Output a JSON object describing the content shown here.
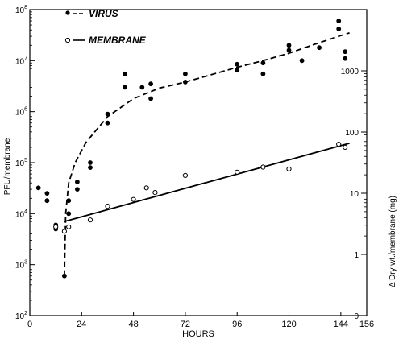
{
  "chart_data": {
    "type": "scatter",
    "xlabel": "HOURS",
    "ylabel_left": "PFU/membrane",
    "ylabel_right": "Δ Dry wt./membrane (mg)",
    "xlim": [
      0,
      156
    ],
    "ylim_left": [
      100,
      100000000
    ],
    "y_scale_left": "log",
    "ylim_right": [
      0,
      10000
    ],
    "y_scale_right": "log",
    "x_ticks": [
      "0",
      "24",
      "48",
      "72",
      "96",
      "120",
      "144",
      "156"
    ],
    "y_left_ticks": [
      {
        "value": 100,
        "base": "10",
        "exp": "2"
      },
      {
        "value": 1000,
        "base": "10",
        "exp": "3"
      },
      {
        "value": 10000,
        "base": "10",
        "exp": "4"
      },
      {
        "value": 100000,
        "base": "10",
        "exp": "5"
      },
      {
        "value": 1000000,
        "base": "10",
        "exp": "6"
      },
      {
        "value": 10000000,
        "base": "10",
        "exp": "7"
      },
      {
        "value": 100000000,
        "base": "10",
        "exp": "8"
      }
    ],
    "y_right_ticks": [
      "0",
      "1",
      "10",
      "100",
      "1000"
    ],
    "legend_position": "top-left",
    "series": [
      {
        "name": "VIRUS",
        "marker": "filled-circle",
        "points": [
          [
            4,
            32000
          ],
          [
            8,
            25000
          ],
          [
            8,
            18000
          ],
          [
            12,
            6000
          ],
          [
            12,
            5000
          ],
          [
            16,
            600
          ],
          [
            18,
            18000
          ],
          [
            18,
            10000
          ],
          [
            22,
            42000
          ],
          [
            22,
            30000
          ],
          [
            28,
            100000
          ],
          [
            28,
            80000
          ],
          [
            36,
            900000
          ],
          [
            36,
            600000
          ],
          [
            44,
            5500000
          ],
          [
            44,
            3000000
          ],
          [
            52,
            3000000
          ],
          [
            56,
            3500000
          ],
          [
            56,
            1800000
          ],
          [
            72,
            5500000
          ],
          [
            72,
            3800000
          ],
          [
            96,
            8500000
          ],
          [
            96,
            6500000
          ],
          [
            108,
            9000000
          ],
          [
            108,
            5500000
          ],
          [
            120,
            20000000
          ],
          [
            120,
            16000000
          ],
          [
            126,
            10000000
          ],
          [
            134,
            18000000
          ],
          [
            143,
            60000000
          ],
          [
            143,
            42000000
          ],
          [
            146,
            15000000
          ],
          [
            146,
            11000000
          ]
        ]
      },
      {
        "name": "MEMBRANE",
        "marker": "open-circle",
        "points": [
          [
            12,
            5500
          ],
          [
            16,
            4500
          ],
          [
            18,
            5500
          ],
          [
            28,
            7500
          ],
          [
            36,
            14000
          ],
          [
            48,
            19000
          ],
          [
            54,
            32000
          ],
          [
            58,
            26000
          ],
          [
            72,
            56000
          ],
          [
            96,
            65000
          ],
          [
            108,
            82000
          ],
          [
            120,
            75000
          ],
          [
            143,
            230000
          ],
          [
            146,
            200000
          ]
        ]
      }
    ],
    "fit_lines": [
      {
        "series": "VIRUS",
        "style": "dashed",
        "points": [
          [
            16,
            600
          ],
          [
            16.6,
            10000
          ],
          [
            18,
            40000
          ],
          [
            21,
            100000
          ],
          [
            26,
            250000
          ],
          [
            36,
            800000
          ],
          [
            48,
            1800000
          ],
          [
            60,
            2900000
          ],
          [
            72,
            3800000
          ],
          [
            84,
            5300000
          ],
          [
            96,
            7400000
          ],
          [
            108,
            10000000
          ],
          [
            120,
            14000000
          ],
          [
            132,
            21000000
          ],
          [
            144,
            31000000
          ],
          [
            148,
            35000000
          ]
        ]
      },
      {
        "series": "MEMBRANE",
        "style": "solid",
        "points": [
          [
            16,
            7000
          ],
          [
            148,
            240000
          ]
        ]
      }
    ]
  }
}
